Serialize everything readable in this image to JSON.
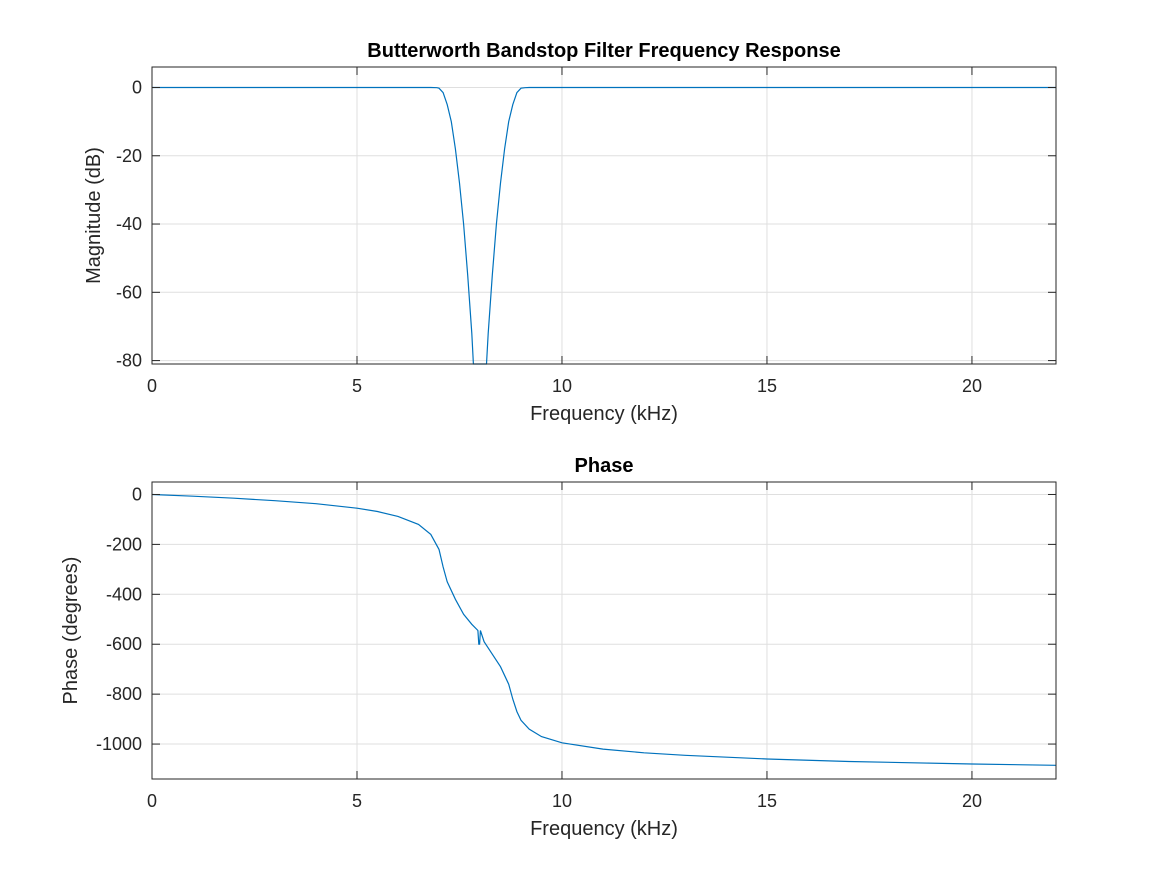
{
  "colors": {
    "series": "#0072bd"
  },
  "chart_data": [
    {
      "type": "line",
      "title": "Butterworth Bandstop Filter Frequency Response",
      "xlabel": "Frequency (kHz)",
      "ylabel": "Magnitude (dB)",
      "xlim": [
        0,
        22.05
      ],
      "ylim": [
        -81,
        6
      ],
      "grid": true,
      "xticks": [
        0,
        5,
        10,
        15,
        20
      ],
      "xtick_labels": [
        "0",
        "5",
        "10",
        "15",
        "20"
      ],
      "yticks": [
        0,
        -20,
        -40,
        -60,
        -80
      ],
      "ytick_labels": [
        "0",
        "-20",
        "-40",
        "-60",
        "-80"
      ],
      "series": [
        {
          "x": [
            0,
            6.8,
            6.95,
            7.0,
            7.1,
            7.2,
            7.3,
            7.4,
            7.5,
            7.6,
            7.7,
            7.8,
            7.84,
            8.16,
            8.2,
            8.3,
            8.4,
            8.5,
            8.6,
            8.7,
            8.8,
            8.9,
            9.0,
            9.1,
            9.2,
            9.4,
            22.05
          ],
          "y": [
            0,
            0,
            -0.05,
            -0.2,
            -1.5,
            -5,
            -10,
            -18,
            -28,
            -40,
            -55,
            -72,
            -81,
            -81,
            -72,
            -55,
            -40,
            -28,
            -18,
            -10,
            -5,
            -1.5,
            -0.2,
            -0.05,
            0,
            0,
            0
          ]
        }
      ]
    },
    {
      "type": "line",
      "title": "Phase",
      "xlabel": "Frequency (kHz)",
      "ylabel": "Phase (degrees)",
      "xlim": [
        0,
        22.05
      ],
      "ylim": [
        -1140,
        50
      ],
      "grid": true,
      "xticks": [
        0,
        5,
        10,
        15,
        20
      ],
      "xtick_labels": [
        "0",
        "5",
        "10",
        "15",
        "20"
      ],
      "yticks": [
        0,
        -200,
        -400,
        -600,
        -800,
        -1000
      ],
      "ytick_labels": [
        "0",
        "-200",
        "-400",
        "-600",
        "-800",
        "-1000"
      ],
      "series": [
        {
          "x": [
            0,
            1,
            2,
            3,
            4,
            5,
            5.5,
            6,
            6.5,
            6.8,
            7.0,
            7.1,
            7.2,
            7.4,
            7.6,
            7.8,
            7.95,
            7.97,
            7.99,
            8.01,
            8.1,
            8.3,
            8.5,
            8.7,
            8.8,
            8.9,
            9.0,
            9.2,
            9.5,
            10,
            11,
            12,
            13,
            15,
            17,
            20,
            22.05
          ],
          "y": [
            0,
            -7,
            -15,
            -25,
            -37,
            -55,
            -68,
            -88,
            -120,
            -160,
            -220,
            -290,
            -350,
            -420,
            -480,
            -520,
            -545,
            -600,
            -600,
            -545,
            -590,
            -640,
            -690,
            -760,
            -820,
            -870,
            -905,
            -940,
            -970,
            -995,
            -1020,
            -1035,
            -1045,
            -1060,
            -1070,
            -1080,
            -1085
          ]
        }
      ]
    }
  ]
}
